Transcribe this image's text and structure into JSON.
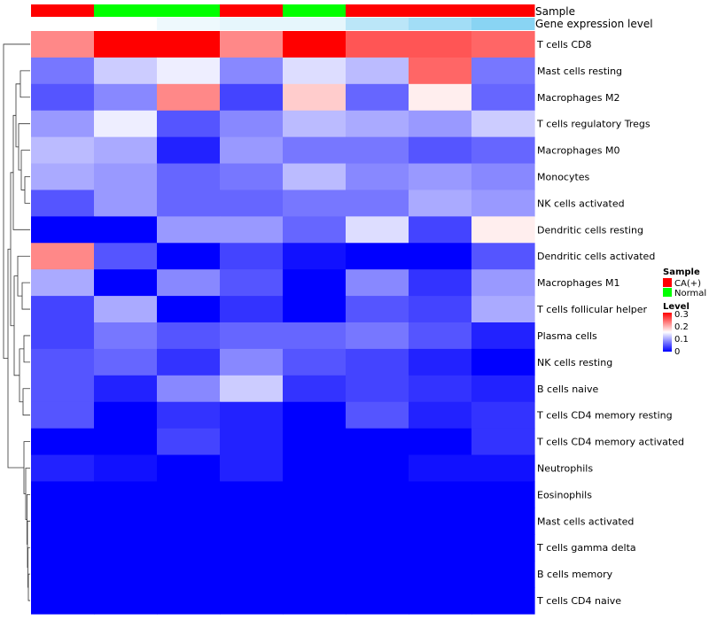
{
  "chart_data": {
    "type": "heatmap",
    "annotations": {
      "sample": {
        "label": "Sample",
        "values": [
          "CA(+)",
          "Normal",
          "Normal",
          "CA(+)",
          "Normal",
          "CA(+)",
          "CA(+)",
          "CA(+)"
        ]
      },
      "gene_expression": {
        "label": "Gene expression level",
        "values": [
          0.0,
          0.0,
          0.1,
          0.15,
          0.15,
          0.4,
          0.55,
          0.7
        ]
      }
    },
    "rows": [
      {
        "name": "T cells CD8",
        "values": [
          0.22,
          0.3,
          0.3,
          0.22,
          0.3,
          0.25,
          0.25,
          0.24
        ]
      },
      {
        "name": "Mast cells resting",
        "values": [
          0.07,
          0.12,
          0.14,
          0.08,
          0.13,
          0.11,
          0.24,
          0.07
        ]
      },
      {
        "name": "Macrophages M2",
        "values": [
          0.05,
          0.08,
          0.22,
          0.04,
          0.18,
          0.06,
          0.16,
          0.06
        ]
      },
      {
        "name": "T cells regulatory  Tregs",
        "values": [
          0.09,
          0.14,
          0.05,
          0.08,
          0.11,
          0.1,
          0.09,
          0.12
        ]
      },
      {
        "name": "Macrophages M0",
        "values": [
          0.11,
          0.1,
          0.02,
          0.09,
          0.07,
          0.07,
          0.05,
          0.06
        ]
      },
      {
        "name": "Monocytes",
        "values": [
          0.1,
          0.09,
          0.06,
          0.07,
          0.11,
          0.08,
          0.09,
          0.08
        ]
      },
      {
        "name": "NK cells activated",
        "values": [
          0.05,
          0.09,
          0.06,
          0.06,
          0.07,
          0.07,
          0.1,
          0.09
        ]
      },
      {
        "name": "Dendritic cells resting",
        "values": [
          0.0,
          0.0,
          0.09,
          0.09,
          0.06,
          0.13,
          0.04,
          0.16
        ]
      },
      {
        "name": "Dendritic cells activated",
        "values": [
          0.22,
          0.05,
          0.0,
          0.04,
          0.01,
          0.0,
          0.0,
          0.05
        ]
      },
      {
        "name": "Macrophages M1",
        "values": [
          0.1,
          0.0,
          0.08,
          0.05,
          0.0,
          0.08,
          0.03,
          0.09
        ]
      },
      {
        "name": "T cells follicular helper",
        "values": [
          0.04,
          0.1,
          0.0,
          0.03,
          0.0,
          0.05,
          0.04,
          0.1
        ]
      },
      {
        "name": "Plasma cells",
        "values": [
          0.04,
          0.07,
          0.05,
          0.06,
          0.06,
          0.07,
          0.05,
          0.02
        ]
      },
      {
        "name": "NK cells resting",
        "values": [
          0.05,
          0.06,
          0.03,
          0.08,
          0.05,
          0.04,
          0.02,
          0.0
        ]
      },
      {
        "name": "B cells naive",
        "values": [
          0.05,
          0.02,
          0.08,
          0.12,
          0.03,
          0.04,
          0.03,
          0.02
        ]
      },
      {
        "name": "T cells CD4 memory resting",
        "values": [
          0.05,
          0.0,
          0.03,
          0.02,
          0.0,
          0.05,
          0.02,
          0.03
        ]
      },
      {
        "name": "T cells CD4 memory activated",
        "values": [
          0.0,
          0.0,
          0.04,
          0.02,
          0.0,
          0.0,
          0.0,
          0.03
        ]
      },
      {
        "name": "Neutrophils",
        "values": [
          0.02,
          0.01,
          0.0,
          0.02,
          0.0,
          0.0,
          0.01,
          0.01
        ]
      },
      {
        "name": "Eosinophils",
        "values": [
          0,
          0,
          0,
          0,
          0,
          0,
          0,
          0
        ]
      },
      {
        "name": "Mast cells activated",
        "values": [
          0,
          0,
          0,
          0,
          0,
          0,
          0,
          0
        ]
      },
      {
        "name": "T cells gamma delta",
        "values": [
          0,
          0,
          0,
          0,
          0,
          0,
          0,
          0
        ]
      },
      {
        "name": "B cells memory",
        "values": [
          0,
          0,
          0,
          0,
          0,
          0,
          0,
          0
        ]
      },
      {
        "name": "T cells CD4 naive",
        "values": [
          0,
          0,
          0,
          0,
          0,
          0,
          0,
          0
        ]
      }
    ],
    "color_scale": {
      "min": 0,
      "max": 0.3,
      "colors": [
        "#0000ff",
        "#ffffff",
        "#ff0000"
      ]
    },
    "legend": {
      "sample_title": "Sample",
      "sample_items": [
        {
          "label": "CA(+)",
          "color": "#ff0000"
        },
        {
          "label": "Normal",
          "color": "#00ff00"
        }
      ],
      "level_title": "Level",
      "level_ticks": [
        "0.3",
        "0.2",
        "0.1",
        "0"
      ],
      "placement": "right"
    },
    "dendrogram": "left"
  },
  "colors": {
    "ca_positive": "#ff0000",
    "normal": "#00ff00",
    "gene_low": "#ffffff",
    "gene_high": "#56c1ee"
  }
}
